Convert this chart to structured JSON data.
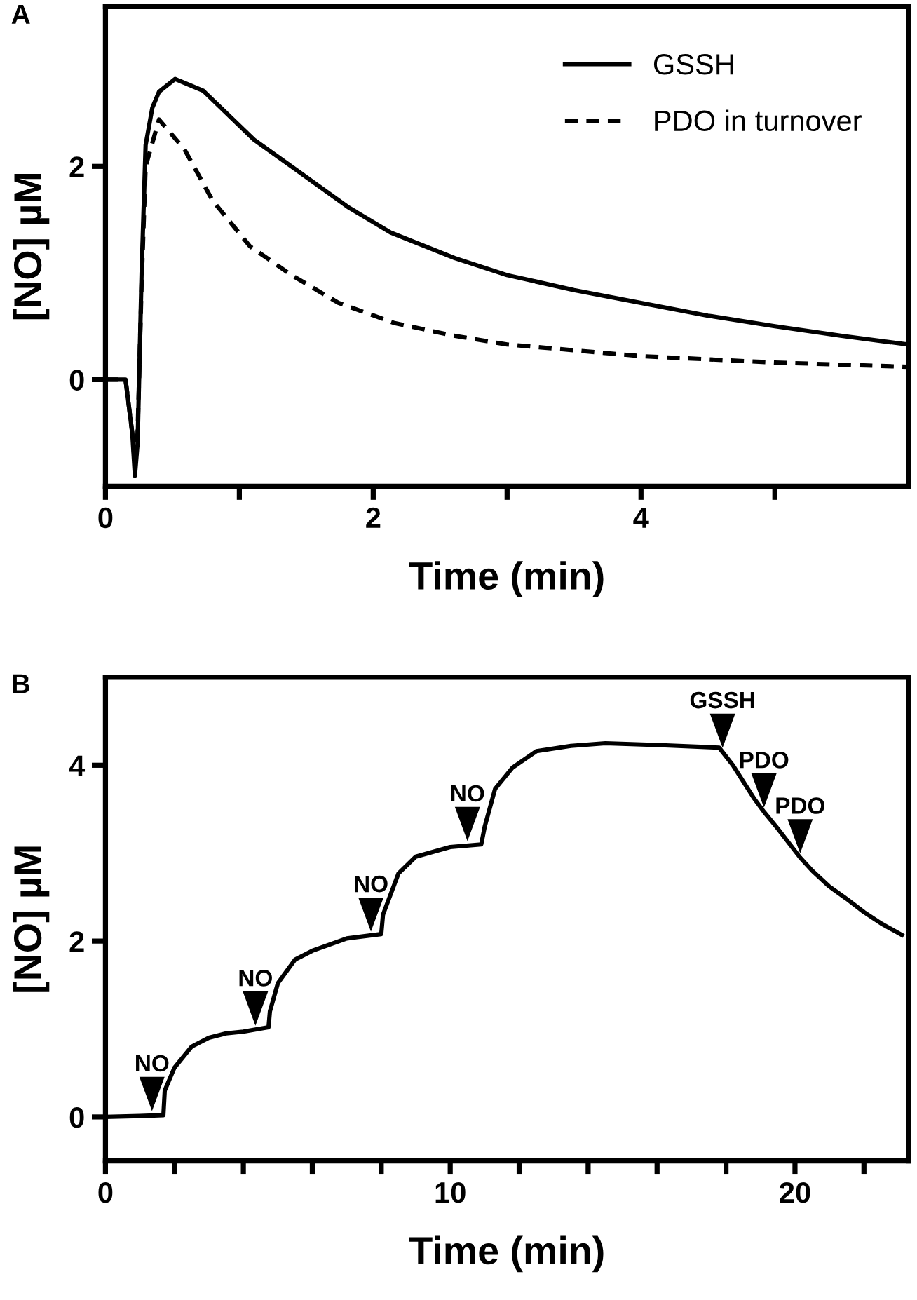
{
  "chart_data": [
    {
      "type": "line",
      "xlabel": "Time (min)",
      "ylabel": "[NO] µM",
      "annotations": [
        "A"
      ],
      "xlim": [
        0,
        6
      ],
      "ylim": [
        -1,
        3.5
      ],
      "xticks": [
        0,
        {
          "value": 1,
          "label": null
        },
        2,
        {
          "value": 3,
          "label": null
        },
        4,
        {
          "value": 5,
          "label": null
        }
      ],
      "yticks": [
        0,
        2
      ],
      "grid": false,
      "legend": "top right",
      "series": [
        {
          "name": "GSSH",
          "color": "#000000",
          "line_style": "solid",
          "x": [
            0,
            0.1,
            0.15,
            0.17,
            0.2,
            0.22,
            0.24,
            0.27,
            0.3,
            0.35,
            0.4,
            0.52,
            0.73,
            1.11,
            1.5,
            1.81,
            2.13,
            2.61,
            3.0,
            3.5,
            4.0,
            4.5,
            5.0,
            5.5,
            5.99
          ],
          "values": [
            0,
            0,
            0,
            -0.2,
            -0.5,
            -0.9,
            -0.6,
            1.0,
            2.2,
            2.55,
            2.7,
            2.82,
            2.71,
            2.25,
            1.9,
            1.62,
            1.38,
            1.14,
            0.98,
            0.84,
            0.72,
            0.6,
            0.5,
            0.41,
            0.33
          ]
        },
        {
          "name": "PDO in turnover",
          "color": "#000000",
          "line_style": "dashed",
          "x": [
            0,
            0.1,
            0.15,
            0.17,
            0.2,
            0.22,
            0.24,
            0.27,
            0.3,
            0.4,
            0.59,
            0.8,
            1.08,
            1.39,
            1.74,
            2.16,
            2.61,
            3.0,
            4.0,
            5.0,
            5.99
          ],
          "values": [
            0,
            0,
            0,
            -0.2,
            -0.5,
            -0.8,
            -0.5,
            0.9,
            2.0,
            2.44,
            2.16,
            1.68,
            1.25,
            0.98,
            0.72,
            0.53,
            0.41,
            0.33,
            0.22,
            0.16,
            0.12
          ]
        }
      ]
    },
    {
      "type": "line",
      "xlabel": "Time (min)",
      "ylabel": "[NO] µM",
      "annotations": [
        "B",
        {
          "text": "NO",
          "x": 1.35,
          "y": 0.02
        },
        {
          "text": "NO",
          "x": 4.35,
          "y": 0.99
        },
        {
          "text": "NO",
          "x": 7.7,
          "y": 2.06
        },
        {
          "text": "NO",
          "x": 10.5,
          "y": 3.09
        },
        {
          "text": "GSSH",
          "x": 17.9,
          "y": 4.15
        },
        {
          "text": "PDO",
          "x": 19.1,
          "y": 3.47
        },
        {
          "text": "PDO",
          "x": 20.15,
          "y": 2.95
        }
      ],
      "xlim": [
        0,
        23.3
      ],
      "ylim": [
        -0.5,
        5
      ],
      "xticks": [
        0,
        {
          "value": 2,
          "label": null
        },
        {
          "value": 4,
          "label": null
        },
        {
          "value": 6,
          "label": null
        },
        {
          "value": 8,
          "label": null
        },
        10,
        {
          "value": 12,
          "label": null
        },
        {
          "value": 14,
          "label": null
        },
        {
          "value": 16,
          "label": null
        },
        {
          "value": 18,
          "label": null
        },
        20,
        {
          "value": 22,
          "label": null
        }
      ],
      "yticks": [
        0,
        2,
        4
      ],
      "grid": false,
      "series": [
        {
          "color": "#000000",
          "line_style": "solid",
          "x": [
            0,
            1.0,
            1.68,
            1.72,
            2.0,
            2.5,
            3.0,
            3.5,
            4.0,
            4.73,
            4.77,
            5.0,
            5.5,
            6.0,
            7.0,
            8.0,
            8.05,
            8.5,
            9.0,
            10.0,
            10.9,
            11.0,
            11.3,
            11.8,
            12.5,
            13.5,
            14.5,
            16.0,
            17.8,
            18.2,
            18.8,
            19.1,
            19.5,
            20.15,
            20.5,
            21.0,
            21.5,
            22.0,
            22.5,
            23.1
          ],
          "values": [
            0,
            0.01,
            0.02,
            0.3,
            0.56,
            0.8,
            0.9,
            0.95,
            0.97,
            1.02,
            1.2,
            1.52,
            1.79,
            1.89,
            2.03,
            2.08,
            2.3,
            2.77,
            2.96,
            3.07,
            3.1,
            3.3,
            3.73,
            3.97,
            4.16,
            4.22,
            4.25,
            4.23,
            4.2,
            4.0,
            3.63,
            3.47,
            3.28,
            2.95,
            2.8,
            2.62,
            2.48,
            2.33,
            2.2,
            2.07
          ]
        }
      ]
    }
  ]
}
